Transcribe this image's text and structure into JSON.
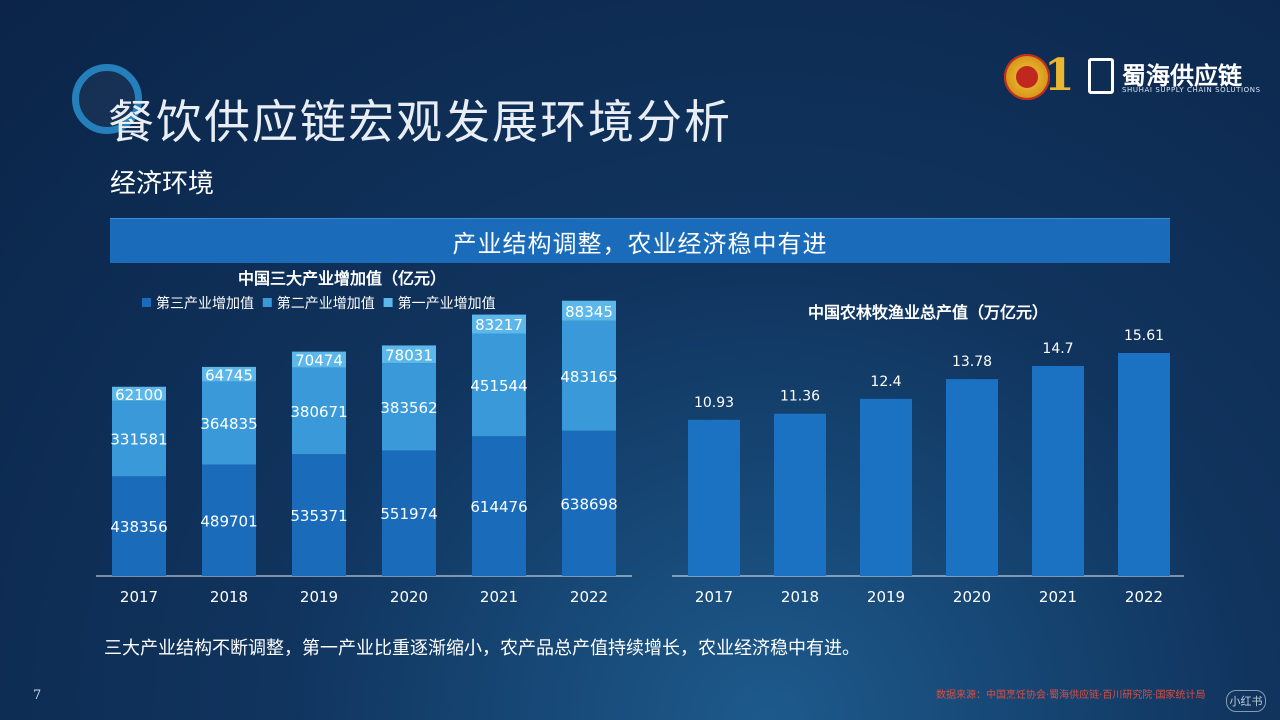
{
  "header": {
    "title": "餐饮供应链宏观发展环境分析",
    "subtitle": "经济环境",
    "logo": {
      "name": "蜀海供应链",
      "sub": "SHUHAI SUPPLY CHAIN SOLUTIONS",
      "mark": "1"
    }
  },
  "banner": {
    "text": "产业结构调整，农业经济稳中有进"
  },
  "colors": {
    "tertiary": "#1a6cbb",
    "secondary": "#3a9ad9",
    "primary": "#5cb8ea",
    "bar_single": "#1b72c2"
  },
  "chart_data": [
    {
      "type": "bar",
      "stacked": true,
      "title": "中国三大产业增加值（亿元）",
      "categories": [
        "2017",
        "2018",
        "2019",
        "2020",
        "2021",
        "2022"
      ],
      "series": [
        {
          "name": "第三产业增加值",
          "values": [
            438356,
            489701,
            535371,
            551974,
            614476,
            638698
          ]
        },
        {
          "name": "第二产业增加值",
          "values": [
            331581,
            364835,
            380671,
            383562,
            451544,
            483165
          ]
        },
        {
          "name": "第一产业增加值",
          "values": [
            62100,
            64745,
            70474,
            78031,
            83217,
            88345
          ]
        }
      ],
      "legend": "top",
      "grid": false
    },
    {
      "type": "bar",
      "title": "中国农林牧渔业总产值（万亿元）",
      "categories": [
        "2017",
        "2018",
        "2019",
        "2020",
        "2021",
        "2022"
      ],
      "values": [
        10.93,
        11.36,
        12.4,
        13.78,
        14.7,
        15.61
      ],
      "value_labels": [
        "10.93",
        "11.36",
        "12.4",
        "13.78",
        "14.7",
        "15.61"
      ],
      "grid": false
    }
  ],
  "footer": {
    "caption": "三大产业结构不断调整，第一产业比重逐渐缩小，农产品总产值持续增长，农业经济稳中有进。",
    "page": "7",
    "source": "数据来源：中国烹饪协会·蜀海供应链·百川研究院·国家统计局",
    "badge": "小红书"
  }
}
